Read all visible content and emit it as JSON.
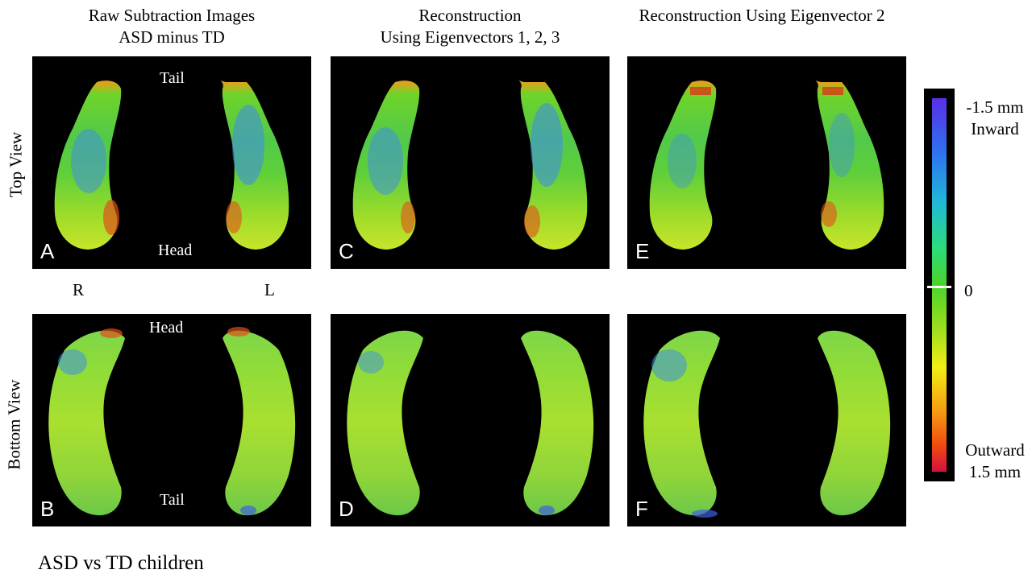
{
  "columns": [
    {
      "line1": "Raw Subtraction Images",
      "line2": "ASD minus TD"
    },
    {
      "line1": "Reconstruction",
      "line2": "Using Eigenvectors 1, 2, 3"
    },
    {
      "line1": "Reconstruction Using  Eigenvector 2",
      "line2": ""
    }
  ],
  "rows": {
    "top": "Top View",
    "bottom": "Bottom View"
  },
  "panels": [
    "A",
    "B",
    "C",
    "D",
    "E",
    "F"
  ],
  "orientation": {
    "tail": "Tail",
    "head": "Head",
    "right": "R",
    "left": "L"
  },
  "colorbar": {
    "top_value": "-1.5 mm",
    "top_label": "Inward",
    "mid_value": "0",
    "bottom_label": "Outward",
    "bottom_value": "1.5 mm"
  },
  "caption": "ASD vs TD children"
}
